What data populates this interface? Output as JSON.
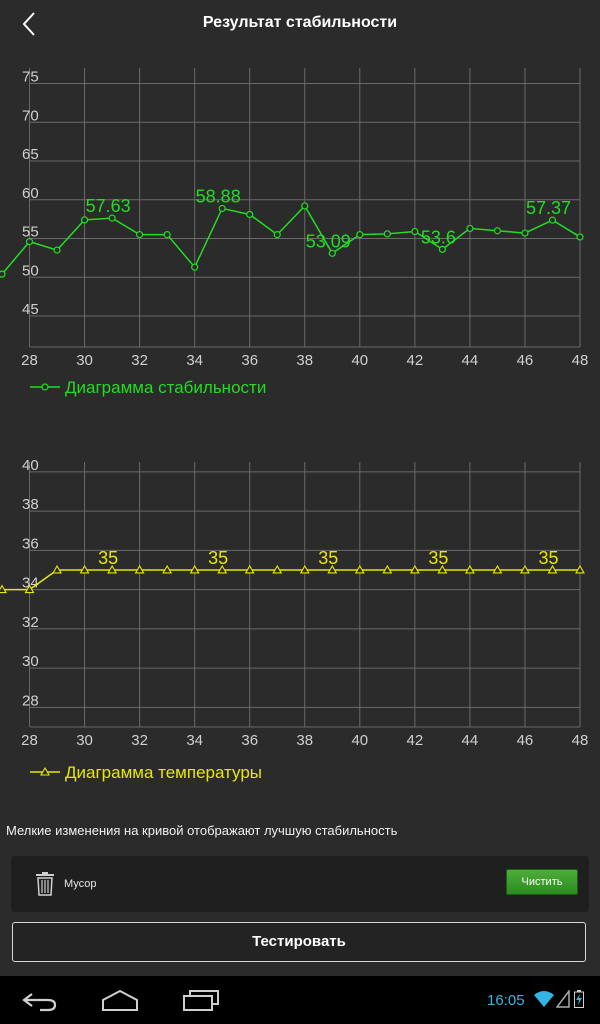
{
  "header": {
    "title": "Результат стабильности",
    "back_icon": "chevron-left-icon"
  },
  "stability_chart": {
    "type": "line",
    "color": "#22dd22",
    "x": [
      27,
      28,
      29,
      30,
      31,
      32,
      33,
      34,
      35,
      36,
      37,
      38,
      39,
      40,
      41,
      42,
      43,
      44,
      45,
      46,
      47,
      48
    ],
    "values": [
      50.4,
      54.6,
      53.5,
      57.4,
      57.63,
      55.5,
      55.5,
      51.3,
      58.88,
      58.1,
      55.5,
      59.2,
      53.09,
      55.5,
      55.6,
      55.9,
      53.6,
      56.3,
      56.0,
      55.7,
      57.37,
      55.2
    ],
    "data_labels": [
      {
        "x": 31,
        "value": 57.63,
        "label": "57.63"
      },
      {
        "x": 35,
        "value": 58.88,
        "label": "58.88"
      },
      {
        "x": 39,
        "value": 53.09,
        "label": "53.09"
      },
      {
        "x": 43,
        "value": 53.6,
        "label": "53.6"
      },
      {
        "x": 47,
        "value": 57.37,
        "label": "57.37"
      }
    ],
    "y_ticks": [
      "45",
      "50",
      "55",
      "60",
      "65",
      "70",
      "75"
    ],
    "y_tick_values": [
      45,
      50,
      55,
      60,
      65,
      70,
      75
    ],
    "x_ticks": [
      "28",
      "30",
      "32",
      "34",
      "36",
      "38",
      "40",
      "42",
      "44",
      "46",
      "48"
    ],
    "x_tick_values": [
      28,
      30,
      32,
      34,
      36,
      38,
      40,
      42,
      44,
      46,
      48
    ],
    "ylim": [
      41,
      77
    ],
    "xlim": [
      27,
      48
    ],
    "legend": "Диаграмма стабильности",
    "grid": true
  },
  "temperature_chart": {
    "type": "line",
    "color": "#e8e800",
    "x": [
      27,
      28,
      29,
      30,
      31,
      32,
      33,
      34,
      35,
      36,
      37,
      38,
      39,
      40,
      41,
      42,
      43,
      44,
      45,
      46,
      47,
      48
    ],
    "values": [
      34,
      34,
      35,
      35,
      35,
      35,
      35,
      35,
      35,
      35,
      35,
      35,
      35,
      35,
      35,
      35,
      35,
      35,
      35,
      35,
      35,
      35
    ],
    "data_labels": [
      {
        "x": 31,
        "value": 35,
        "label": "35"
      },
      {
        "x": 35,
        "value": 35,
        "label": "35"
      },
      {
        "x": 39,
        "value": 35,
        "label": "35"
      },
      {
        "x": 43,
        "value": 35,
        "label": "35"
      },
      {
        "x": 47,
        "value": 35,
        "label": "35"
      }
    ],
    "y_ticks": [
      "28",
      "30",
      "32",
      "34",
      "36",
      "38",
      "40"
    ],
    "y_tick_values": [
      28,
      30,
      32,
      34,
      36,
      38,
      40
    ],
    "x_ticks": [
      "28",
      "30",
      "32",
      "34",
      "36",
      "38",
      "40",
      "42",
      "44",
      "46",
      "48"
    ],
    "x_tick_values": [
      28,
      30,
      32,
      34,
      36,
      38,
      40,
      42,
      44,
      46,
      48
    ],
    "ylim": [
      27,
      40.5
    ],
    "xlim": [
      27,
      48
    ],
    "legend": "Диаграмма температуры",
    "grid": true
  },
  "note": "Мелкие изменения на кривой отображают лучшую стабильность",
  "junk": {
    "icon": "trash-icon",
    "label": "Мусор",
    "button": "Чистить",
    "button_color": "#3ea02d"
  },
  "test_button": "Тестировать",
  "navbar": {
    "back_icon": "nav-back-icon",
    "home_icon": "nav-home-icon",
    "recents_icon": "nav-recents-icon",
    "time": "16:05",
    "wifi_icon": "wifi-icon",
    "signal_icon": "signal-icon",
    "battery_icon": "battery-charging-icon"
  }
}
